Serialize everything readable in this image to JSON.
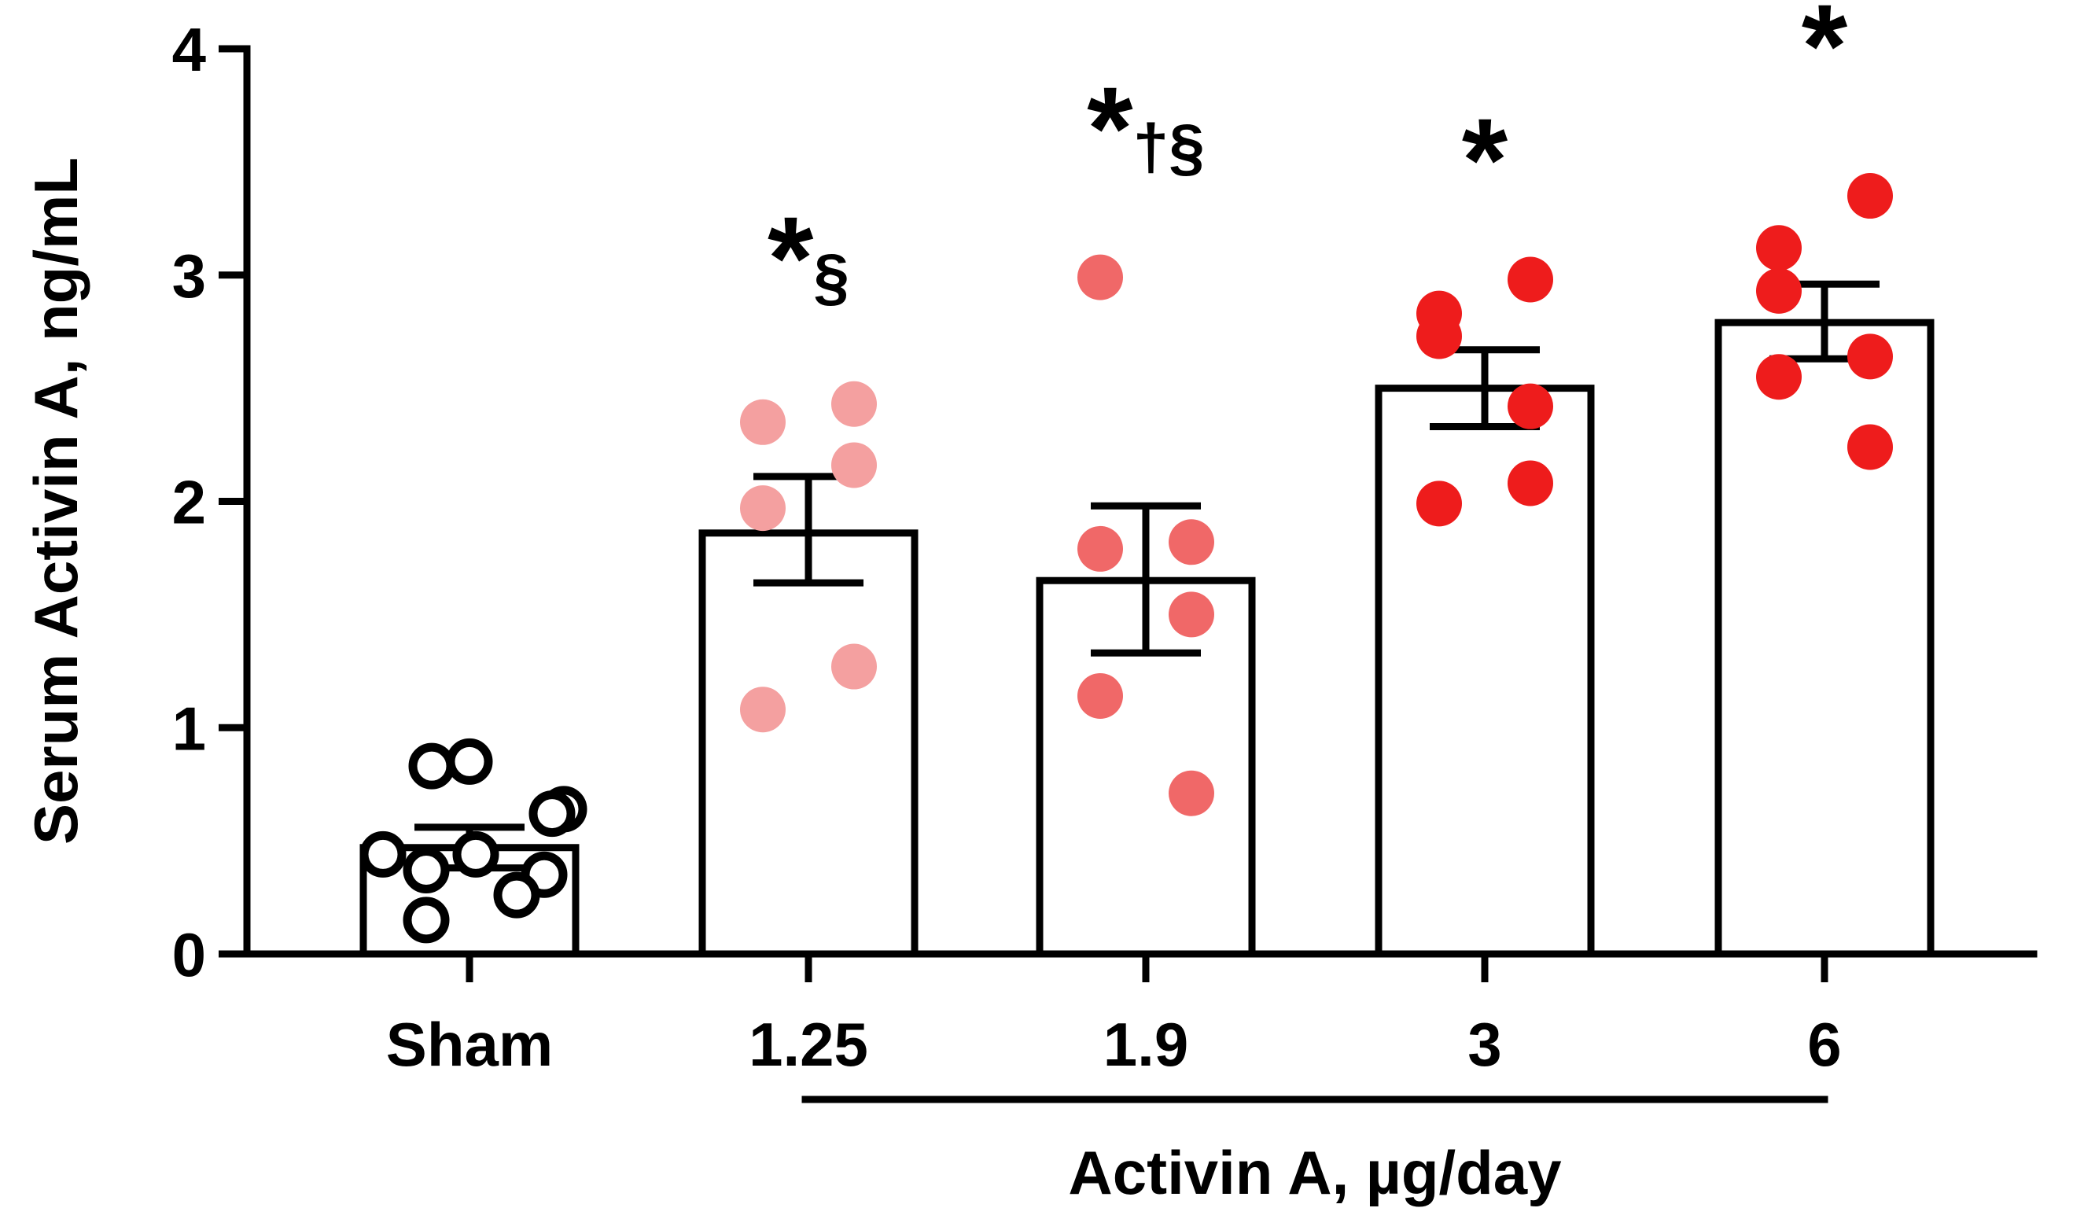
{
  "chart_data": {
    "type": "bar",
    "ylabel": "Serum Activin A, ng/mL",
    "group_label": "Activin A, µg/day",
    "ylim": [
      0,
      4
    ],
    "yticks": [
      "0",
      "1",
      "2",
      "3",
      "4"
    ],
    "categories": [
      "Sham",
      "1.25",
      "1.9",
      "3",
      "6"
    ],
    "means": [
      0.47,
      1.86,
      1.65,
      2.5,
      2.79
    ],
    "sem_low": [
      0.38,
      1.64,
      1.33,
      2.33,
      2.63
    ],
    "sem_high": [
      0.56,
      2.11,
      1.98,
      2.67,
      2.96
    ],
    "significance": [
      "",
      "*§",
      "*†§",
      "*",
      "*"
    ],
    "point_colors": [
      "#000000",
      "#f4a0a0",
      "#f06868",
      "#ee1c1c",
      "#ee1c1c"
    ],
    "points": [
      [
        0.83,
        0.85,
        0.64,
        0.62,
        0.44,
        0.44,
        0.37,
        0.35,
        0.15,
        0.26
      ],
      [
        2.35,
        2.43,
        1.97,
        2.16,
        1.08,
        1.27
      ],
      [
        2.99,
        1.82,
        1.79,
        1.5,
        1.14,
        0.71
      ],
      [
        2.83,
        2.98,
        2.73,
        2.42,
        1.99,
        2.08
      ],
      [
        3.12,
        3.35,
        2.93,
        2.64,
        2.55,
        2.24
      ]
    ]
  }
}
